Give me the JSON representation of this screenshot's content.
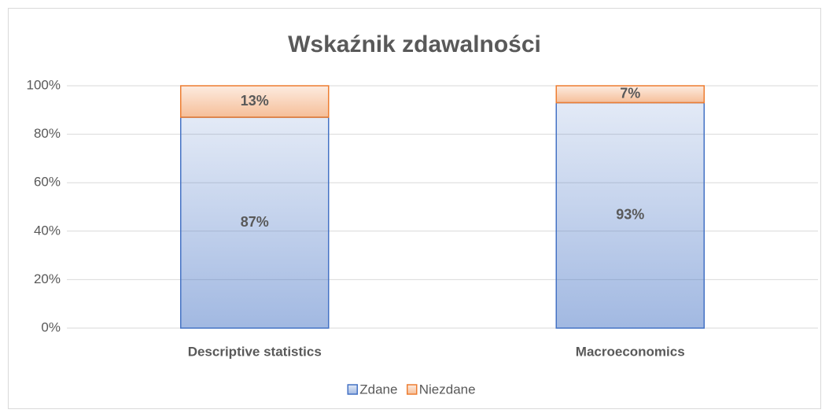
{
  "chart_data": {
    "type": "stacked_bar",
    "title": "Wskaźnik zdawalności",
    "categories": [
      "Descriptive statistics",
      "Macroeconomics"
    ],
    "series": [
      {
        "name": "Zdane",
        "color": "#4472c4",
        "values": [
          87,
          93
        ],
        "value_labels": [
          "87%",
          "93%"
        ]
      },
      {
        "name": "Niezdane",
        "color": "#ed7d31",
        "values": [
          13,
          7
        ],
        "value_labels": [
          "13%",
          "7%"
        ]
      }
    ],
    "ylim": [
      0,
      100
    ],
    "yticks": [
      {
        "value": 0,
        "label": "0%"
      },
      {
        "value": 20,
        "label": "20%"
      },
      {
        "value": 40,
        "label": "40%"
      },
      {
        "value": 60,
        "label": "60%"
      },
      {
        "value": 80,
        "label": "80%"
      },
      {
        "value": 100,
        "label": "100%"
      }
    ],
    "grid": true,
    "legend": "bottom"
  }
}
